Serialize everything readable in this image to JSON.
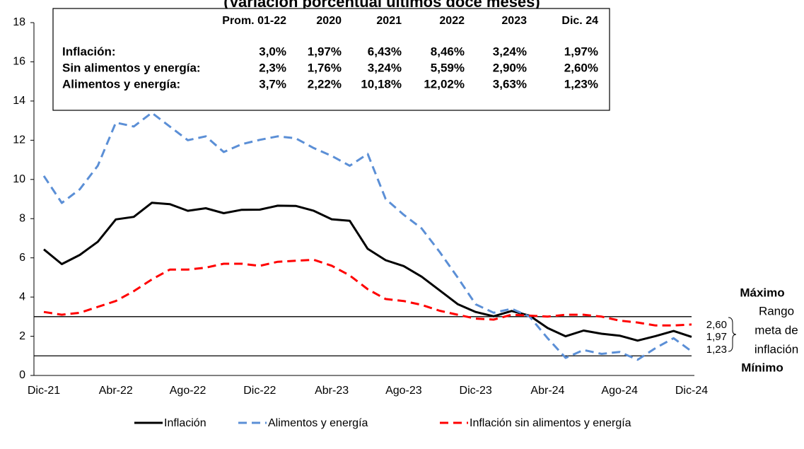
{
  "chart_data": {
    "type": "line",
    "title": "(Variación porcentual últimos doce meses)",
    "categories": [
      "Dic-21",
      null,
      null,
      null,
      "Abr-22",
      null,
      null,
      null,
      "Ago-22",
      null,
      null,
      null,
      "Dic-22",
      null,
      null,
      null,
      "Abr-23",
      null,
      null,
      null,
      "Ago-23",
      null,
      null,
      null,
      "Dic-23",
      null,
      null,
      null,
      "Abr-24",
      null,
      null,
      null,
      "Ago-24",
      null,
      null,
      null,
      "Dic-24"
    ],
    "series": [
      {
        "name": "Inflación",
        "color": "#000000",
        "style": "solid",
        "end_label": "1,97",
        "values": [
          6.43,
          5.68,
          6.15,
          6.82,
          7.96,
          8.09,
          8.81,
          8.74,
          8.4,
          8.53,
          8.28,
          8.45,
          8.46,
          8.66,
          8.65,
          8.4,
          7.97,
          7.89,
          6.46,
          5.88,
          5.58,
          5.04,
          4.34,
          3.64,
          3.24,
          3.02,
          3.29,
          3.05,
          2.42,
          2.0,
          2.29,
          2.13,
          2.03,
          1.78,
          2.01,
          2.27,
          1.97
        ]
      },
      {
        "name": "Alimentos y energía",
        "color": "#5b8fd6",
        "style": "dashed",
        "end_label": "1,23",
        "values": [
          10.18,
          8.8,
          9.5,
          10.7,
          12.9,
          12.7,
          13.4,
          12.7,
          12.0,
          12.2,
          11.4,
          11.8,
          12.02,
          12.2,
          12.1,
          11.6,
          11.2,
          10.7,
          11.3,
          9.0,
          8.2,
          7.5,
          6.3,
          5.0,
          3.63,
          3.2,
          3.4,
          3.0,
          1.9,
          0.9,
          1.3,
          1.1,
          1.2,
          0.8,
          1.4,
          1.9,
          1.23
        ]
      },
      {
        "name": "Inflación sin alimentos y energía",
        "color": "#ff0000",
        "style": "dashed",
        "end_label": "2,60",
        "values": [
          3.24,
          3.1,
          3.2,
          3.5,
          3.8,
          4.3,
          4.9,
          5.4,
          5.4,
          5.5,
          5.7,
          5.7,
          5.59,
          5.8,
          5.85,
          5.9,
          5.6,
          5.1,
          4.4,
          3.9,
          3.8,
          3.6,
          3.3,
          3.1,
          2.9,
          2.85,
          3.1,
          3.05,
          3.0,
          3.1,
          3.1,
          3.0,
          2.8,
          2.7,
          2.55,
          2.55,
          2.6
        ]
      }
    ],
    "ylim": [
      0,
      18
    ],
    "yticks": [
      0,
      2,
      4,
      6,
      8,
      10,
      12,
      14,
      16,
      18
    ],
    "reference_lines": [
      {
        "value": 3,
        "label": "Máximo"
      },
      {
        "value": 1,
        "label": "Mínimo"
      }
    ],
    "range_label": [
      "Rango",
      "meta de",
      "inflación"
    ],
    "table": {
      "header": [
        "Prom. 01-22",
        "2020",
        "2021",
        "2022",
        "2023",
        "Dic. 24"
      ],
      "rows": [
        [
          "Inflación:",
          "3,0%",
          "1,97%",
          "6,43%",
          "8,46%",
          "3,24%",
          "1,97%"
        ],
        [
          "Sin alimentos y energía:",
          "2,3%",
          "1,76%",
          "3,24%",
          "5,59%",
          "2,90%",
          "2,60%"
        ],
        [
          "Alimentos y energía:",
          "3,7%",
          "2,22%",
          "10,18%",
          "12,02%",
          "3,63%",
          "1,23%"
        ]
      ]
    }
  }
}
